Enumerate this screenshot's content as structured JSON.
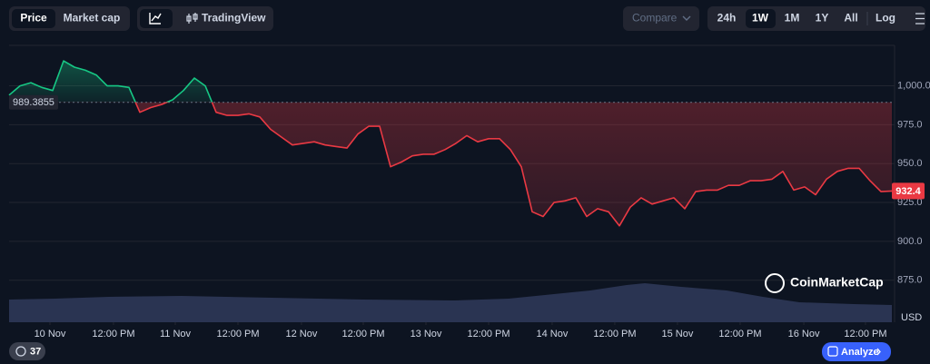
{
  "toolbar": {
    "price": "Price",
    "market_cap": "Market cap",
    "tradingview": "TradingView",
    "compare": "Compare",
    "ranges": [
      "24h",
      "1W",
      "1M",
      "1Y",
      "All"
    ],
    "log": "Log"
  },
  "watermark": "CoinMarketCap",
  "footer": {
    "count": "37",
    "analyze": "Analyze"
  },
  "chart_data": {
    "type": "line",
    "unit_label": "USD",
    "values": [
      994,
      1000,
      1002,
      999,
      997,
      1016,
      1012,
      1010,
      1007,
      1000,
      1000,
      999,
      983,
      986,
      988,
      991,
      997,
      1005,
      1000,
      983,
      981,
      981,
      982,
      980,
      972,
      967,
      962,
      963,
      964,
      962,
      961,
      960,
      969,
      974,
      974,
      948,
      951,
      955,
      956,
      956,
      959,
      963,
      968,
      964,
      966,
      966,
      959,
      948,
      919,
      916,
      925,
      926,
      928,
      916,
      921,
      919,
      910,
      922,
      928,
      924,
      926,
      928,
      921,
      932,
      933,
      933,
      936,
      936,
      939,
      939,
      940,
      945,
      933,
      935,
      930,
      940,
      945,
      947,
      947,
      939,
      932,
      932.4
    ],
    "reference_value": 989.3855,
    "up_color": "#16c784",
    "down_color": "#ea3943",
    "xlim": [
      0,
      81
    ],
    "xticks": [
      {
        "value": 3.75,
        "label": "10 Nov"
      },
      {
        "value": 9.58,
        "label": "12:00 PM"
      },
      {
        "value": 15.25,
        "label": "11 Nov"
      },
      {
        "value": 21,
        "label": "12:00 PM"
      },
      {
        "value": 26.83,
        "label": "12 Nov"
      },
      {
        "value": 32.5,
        "label": "12:00 PM"
      },
      {
        "value": 38.25,
        "label": "13 Nov"
      },
      {
        "value": 44,
        "label": "12:00 PM"
      },
      {
        "value": 49.83,
        "label": "14 Nov"
      },
      {
        "value": 55.58,
        "label": "12:00 PM"
      },
      {
        "value": 61.33,
        "label": "15 Nov"
      },
      {
        "value": 67.08,
        "label": "12:00 PM"
      },
      {
        "value": 72.92,
        "label": "16 Nov"
      },
      {
        "value": 78.58,
        "label": "12:00 PM"
      }
    ],
    "ylim": [
      848,
      1026
    ],
    "yticks": [
      {
        "value": 875,
        "label": "875.0"
      },
      {
        "value": 900,
        "label": "900.0"
      },
      {
        "value": 925,
        "label": "925.0"
      },
      {
        "value": 950,
        "label": "950.0"
      },
      {
        "value": 975,
        "label": "975.0"
      },
      {
        "value": 1000,
        "label": "1,000.0"
      }
    ],
    "grid": true
  }
}
